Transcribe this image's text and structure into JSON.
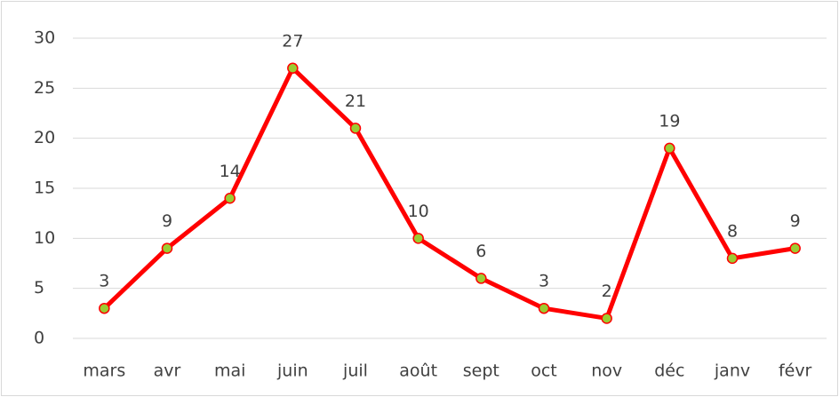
{
  "chart_data": {
    "type": "line",
    "categories": [
      "mars",
      "avr",
      "mai",
      "juin",
      "juil",
      "août",
      "sept",
      "oct",
      "nov",
      "déc",
      "janv",
      "févr"
    ],
    "values": [
      3,
      9,
      14,
      27,
      21,
      10,
      6,
      3,
      2,
      19,
      8,
      9
    ],
    "color": "#ff0000",
    "marker_color": "#9acd32",
    "ylim": [
      0,
      30
    ],
    "yticks": [
      0,
      5,
      10,
      15,
      20,
      25,
      30
    ],
    "grid": true
  }
}
